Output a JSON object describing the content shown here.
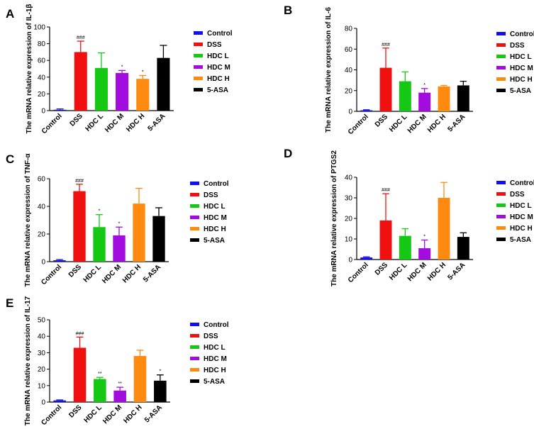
{
  "colors": {
    "Control": "#1010ee",
    "DSS": "#f01010",
    "HDC L": "#14c814",
    "HDC M": "#a20cde",
    "HDC H": "#ff8a10",
    "5-ASA": "#000000"
  },
  "chart_data": [
    {
      "type": "bar",
      "panel": "A",
      "ylabel": "The mRNA relative expression of IL-1β",
      "ylim": [
        0,
        100
      ],
      "yticks": [
        0,
        20,
        40,
        60,
        80,
        100
      ],
      "categories": [
        "Control",
        "DSS",
        "HDC L",
        "HDC M",
        "HDC H",
        "5-ASA"
      ],
      "values": [
        1,
        70,
        51,
        45,
        38,
        63
      ],
      "errors": [
        1,
        13,
        18,
        3,
        4,
        15
      ],
      "annotations": [
        "",
        "###",
        "",
        "*",
        "*",
        ""
      ],
      "legend": [
        "Control",
        "DSS",
        "HDC L",
        "HDC M",
        "HDC H",
        "5-ASA"
      ]
    },
    {
      "type": "bar",
      "panel": "B",
      "ylabel": "The mRNA relative expression of IL-6",
      "ylim": [
        0,
        80
      ],
      "yticks": [
        0,
        20,
        40,
        60,
        80
      ],
      "categories": [
        "Control",
        "DSS",
        "HDC L",
        "HDC M",
        "HDC H",
        "5-ASA"
      ],
      "values": [
        1,
        42,
        29,
        18,
        24,
        25
      ],
      "errors": [
        0.5,
        19,
        9,
        4,
        1,
        4
      ],
      "annotations": [
        "",
        "###",
        "",
        "*",
        "",
        ""
      ],
      "legend": [
        "Control",
        "DSS",
        "HDC L",
        "HDC M",
        "HDC H",
        "5-ASA"
      ]
    },
    {
      "type": "bar",
      "panel": "C",
      "ylabel": "The mRNA relative expression of TNF-α",
      "ylim": [
        0,
        60
      ],
      "yticks": [
        0,
        20,
        40,
        60
      ],
      "categories": [
        "Control",
        "DSS",
        "HDC L",
        "HDC M",
        "HDC H",
        "5-ASA"
      ],
      "values": [
        1,
        51,
        25,
        19,
        42,
        33
      ],
      "errors": [
        0.5,
        5,
        9,
        6,
        11,
        6
      ],
      "annotations": [
        "",
        "###",
        "*",
        "*",
        "",
        ""
      ],
      "legend": [
        "Control",
        "DSS",
        "HDC L",
        "HDC M",
        "HDC H",
        "5-ASA"
      ]
    },
    {
      "type": "bar",
      "panel": "D",
      "ylabel": "The mRNA relative expression of PTGS2",
      "ylim": [
        0,
        40
      ],
      "yticks": [
        0,
        10,
        20,
        30,
        40
      ],
      "categories": [
        "Control",
        "DSS",
        "HDC L",
        "HDC M",
        "HDC H",
        "5-ASA"
      ],
      "values": [
        1,
        19,
        11.5,
        5.5,
        30,
        11
      ],
      "errors": [
        0.3,
        13,
        3.5,
        4,
        7.5,
        2
      ],
      "annotations": [
        "",
        "###",
        "",
        "*",
        "",
        ""
      ],
      "legend": [
        "Control",
        "DSS",
        "HDC L",
        "HDC M",
        "HDC H",
        "5-ASA"
      ]
    },
    {
      "type": "bar",
      "panel": "E",
      "ylabel": "The mRNA relative expression of IL-17",
      "ylim": [
        0,
        50
      ],
      "yticks": [
        0,
        10,
        20,
        30,
        40,
        50
      ],
      "categories": [
        "Control",
        "DSS",
        "HDC L",
        "HDC M",
        "HDC H",
        "5-ASA"
      ],
      "values": [
        1,
        33,
        14,
        7,
        28,
        13
      ],
      "errors": [
        0.3,
        6.5,
        1,
        2,
        3.5,
        3.5
      ],
      "annotations": [
        "",
        "###",
        "**",
        "**",
        "",
        "*"
      ],
      "legend": [
        "Control",
        "DSS",
        "HDC L",
        "HDC M",
        "HDC H",
        "5-ASA"
      ]
    }
  ]
}
